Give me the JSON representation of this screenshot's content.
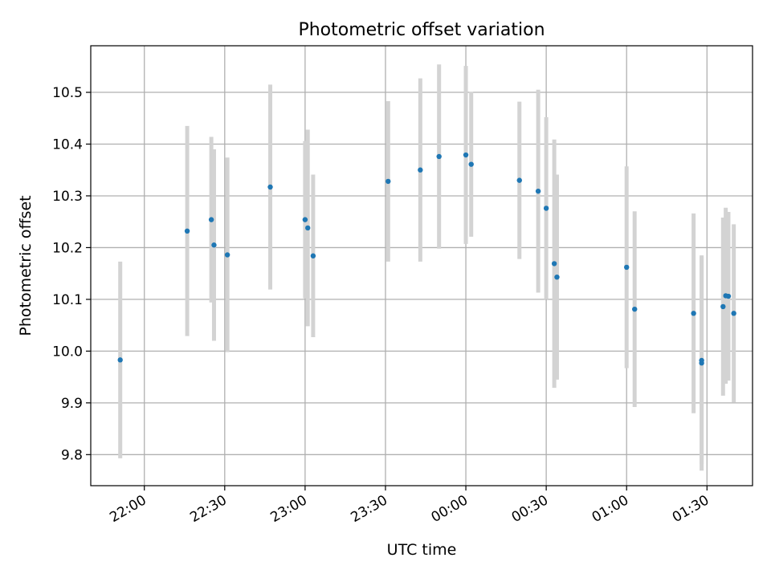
{
  "chart_data": {
    "type": "scatter",
    "title": "Photometric offset variation",
    "xlabel": "UTC time",
    "ylabel": "Photometric offset",
    "grid": true,
    "x_axis": {
      "kind": "time",
      "min": "21:40",
      "max": "01:47",
      "tick_labels": [
        "22:00",
        "22:30",
        "23:00",
        "23:30",
        "00:00",
        "00:30",
        "01:00",
        "01:30"
      ]
    },
    "y_axis": {
      "min": 9.74,
      "max": 10.59,
      "ticks": [
        9.8,
        9.9,
        10.0,
        10.1,
        10.2,
        10.3,
        10.4,
        10.5
      ],
      "tick_labels": [
        "9.8",
        "9.9",
        "10.0",
        "10.1",
        "10.2",
        "10.3",
        "10.4",
        "10.5"
      ]
    },
    "colors": {
      "point": "#1f77b4",
      "errorbar": "#d3d3d3",
      "grid": "#b0b0b0"
    },
    "points": [
      {
        "x": "21:51",
        "y": 9.983,
        "err": 0.19
      },
      {
        "x": "22:16",
        "y": 10.232,
        "err": 0.203
      },
      {
        "x": "22:25",
        "y": 10.254,
        "err": 0.16
      },
      {
        "x": "22:26",
        "y": 10.205,
        "err": 0.185
      },
      {
        "x": "22:31",
        "y": 10.186,
        "err": 0.188
      },
      {
        "x": "22:47",
        "y": 10.317,
        "err": 0.198
      },
      {
        "x": "23:00",
        "y": 10.254,
        "err": 0.152
      },
      {
        "x": "23:01",
        "y": 10.238,
        "err": 0.19
      },
      {
        "x": "23:03",
        "y": 10.184,
        "err": 0.157
      },
      {
        "x": "23:31",
        "y": 10.328,
        "err": 0.155
      },
      {
        "x": "23:43",
        "y": 10.35,
        "err": 0.177
      },
      {
        "x": "23:50",
        "y": 10.376,
        "err": 0.178
      },
      {
        "x": "00:00",
        "y": 10.379,
        "err": 0.172
      },
      {
        "x": "00:02",
        "y": 10.361,
        "err": 0.14
      },
      {
        "x": "00:20",
        "y": 10.33,
        "err": 0.152
      },
      {
        "x": "00:27",
        "y": 10.309,
        "err": 0.196
      },
      {
        "x": "00:30",
        "y": 10.276,
        "err": 0.176
      },
      {
        "x": "00:33",
        "y": 10.169,
        "err": 0.24
      },
      {
        "x": "00:34",
        "y": 10.143,
        "err": 0.198
      },
      {
        "x": "01:00",
        "y": 10.162,
        "err": 0.195
      },
      {
        "x": "01:03",
        "y": 10.081,
        "err": 0.189
      },
      {
        "x": "01:25",
        "y": 10.073,
        "err": 0.193
      },
      {
        "x": "01:28",
        "y": 9.977,
        "err": 0.208
      },
      {
        "x": "01:28",
        "y": 9.982,
        "err": 0.2
      },
      {
        "x": "01:36",
        "y": 10.086,
        "err": 0.172
      },
      {
        "x": "01:37",
        "y": 10.107,
        "err": 0.17
      },
      {
        "x": "01:38",
        "y": 10.106,
        "err": 0.163
      },
      {
        "x": "01:40",
        "y": 10.073,
        "err": 0.172
      }
    ]
  }
}
